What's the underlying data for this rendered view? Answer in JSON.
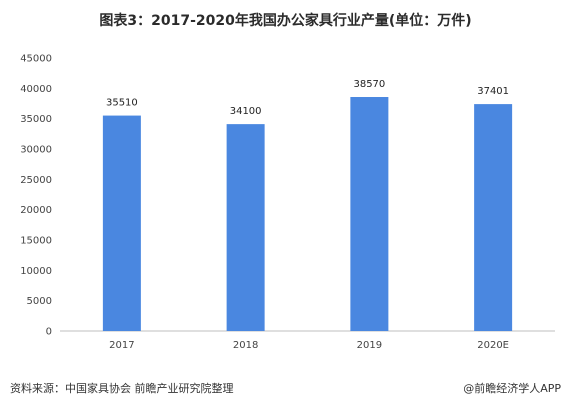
{
  "title": "图表3：2017-2020年我国办公家具行业产量(单位：万件)",
  "footer": {
    "source": "资料来源：中国家具协会 前瞻产业研究院整理",
    "brand": "@前瞻经济学人APP"
  },
  "colors": {
    "bar": "#4a87e0",
    "axis": "#bfbfbf"
  },
  "chart_data": {
    "type": "bar",
    "title": "图表3：2017-2020年我国办公家具行业产量(单位：万件)",
    "categories": [
      "2017",
      "2018",
      "2019",
      "2020E"
    ],
    "values": [
      35510,
      34100,
      38570,
      37401
    ],
    "ylim": [
      0,
      45000
    ],
    "yticks": [
      0,
      5000,
      10000,
      15000,
      20000,
      25000,
      30000,
      35000,
      40000,
      45000
    ],
    "xlabel": "",
    "ylabel": "",
    "grid": false,
    "legend": "none"
  }
}
